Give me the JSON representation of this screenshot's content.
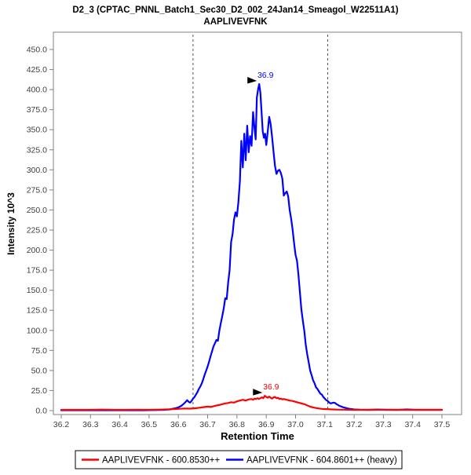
{
  "window": {
    "title_line1": "D2_3 (CPTAC_PNNL_Batch1_Sec30_D2_002_24Jan14_Smeagol_W22511A1)",
    "title_line2": "AAPLIVEVFNK"
  },
  "colors": {
    "frame": "#808080",
    "tick_label": "#404040",
    "boundary": "#555555",
    "light_series": "#ff0000",
    "heavy_series": "#0000ff",
    "annotation_arrow": "#000000"
  },
  "legend": {
    "entries": [
      {
        "label": "AAPLIVEVFNK - 600.8530++",
        "color": "#ff0000"
      },
      {
        "label": "AAPLIVEVFNK - 604.8601++ (heavy)",
        "color": "#0000ff"
      }
    ]
  },
  "chart_data": {
    "type": "line",
    "title": "D2_3 (CPTAC_PNNL_Batch1_Sec30_D2_002_24Jan14_Smeagol_W22511A1)",
    "subtitle": "AAPLIVEVFNK",
    "xlabel": "Retention Time",
    "ylabel": "Intensity 10^3",
    "xlim": [
      36.2,
      37.5
    ],
    "ylim": [
      0,
      450
    ],
    "grid": false,
    "legend_position": "bottom",
    "x_ticks": [
      36.2,
      36.3,
      36.4,
      36.5,
      36.6,
      36.7,
      36.8,
      36.9,
      37.0,
      37.1,
      37.2,
      37.3,
      37.4,
      37.5
    ],
    "y_ticks": [
      0,
      25,
      50,
      75,
      100,
      125,
      150,
      175,
      200,
      225,
      250,
      275,
      300,
      325,
      350,
      375,
      400,
      425,
      450
    ],
    "integration_boundaries": [
      36.65,
      37.11
    ],
    "series": [
      {
        "name": "AAPLIVEVFNK - 600.8530++",
        "color": "#ff0000",
        "peak_label": "36.9",
        "peak_apex": {
          "t": 36.895,
          "v": 18.5
        },
        "points": [
          [
            36.2,
            1
          ],
          [
            36.25,
            1
          ],
          [
            36.3,
            1
          ],
          [
            36.34,
            1.3
          ],
          [
            36.38,
            1
          ],
          [
            36.42,
            1
          ],
          [
            36.46,
            1.2
          ],
          [
            36.5,
            1
          ],
          [
            36.54,
            1.3
          ],
          [
            36.58,
            1.8
          ],
          [
            36.6,
            2.2
          ],
          [
            36.62,
            2.6
          ],
          [
            36.64,
            2.4
          ],
          [
            36.66,
            3
          ],
          [
            36.68,
            4
          ],
          [
            36.7,
            5
          ],
          [
            36.71,
            4.5
          ],
          [
            36.72,
            5.5
          ],
          [
            36.73,
            6.5
          ],
          [
            36.74,
            7
          ],
          [
            36.75,
            8
          ],
          [
            36.76,
            9
          ],
          [
            36.77,
            9.5
          ],
          [
            36.78,
            10.5
          ],
          [
            36.79,
            10
          ],
          [
            36.8,
            11.5
          ],
          [
            36.81,
            12.5
          ],
          [
            36.82,
            13.5
          ],
          [
            36.83,
            12.5
          ],
          [
            36.84,
            14
          ],
          [
            36.85,
            14.5
          ],
          [
            36.855,
            13.5
          ],
          [
            36.86,
            15
          ],
          [
            36.865,
            14.5
          ],
          [
            36.87,
            15.5
          ],
          [
            36.875,
            14.5
          ],
          [
            36.88,
            15.5
          ],
          [
            36.885,
            16.5
          ],
          [
            36.89,
            15.5
          ],
          [
            36.895,
            18.5
          ],
          [
            36.9,
            17
          ],
          [
            36.905,
            16
          ],
          [
            36.91,
            17.5
          ],
          [
            36.915,
            16
          ],
          [
            36.92,
            15
          ],
          [
            36.925,
            16.5
          ],
          [
            36.93,
            17
          ],
          [
            36.935,
            15.5
          ],
          [
            36.94,
            16
          ],
          [
            36.945,
            14.5
          ],
          [
            36.95,
            15
          ],
          [
            36.955,
            14
          ],
          [
            36.96,
            14.5
          ],
          [
            36.97,
            13.5
          ],
          [
            36.98,
            12.5
          ],
          [
            36.99,
            12
          ],
          [
            37.0,
            11
          ],
          [
            37.01,
            10
          ],
          [
            37.02,
            9
          ],
          [
            37.03,
            8
          ],
          [
            37.04,
            6.5
          ],
          [
            37.05,
            5
          ],
          [
            37.06,
            4
          ],
          [
            37.07,
            3.2
          ],
          [
            37.08,
            2.6
          ],
          [
            37.09,
            2.2
          ],
          [
            37.1,
            2
          ],
          [
            37.12,
            1.6
          ],
          [
            37.14,
            1.3
          ],
          [
            37.17,
            1.2
          ],
          [
            37.2,
            1
          ],
          [
            37.25,
            1
          ],
          [
            37.3,
            1.2
          ],
          [
            37.35,
            1
          ],
          [
            37.4,
            1
          ],
          [
            37.45,
            1
          ],
          [
            37.5,
            1
          ]
        ]
      },
      {
        "name": "AAPLIVEVFNK - 604.8601++ (heavy)",
        "color": "#0000ff",
        "peak_label": "36.9",
        "peak_apex": {
          "t": 36.876,
          "v": 407
        },
        "points": [
          [
            36.2,
            0.5
          ],
          [
            36.24,
            0.5
          ],
          [
            36.28,
            0.5
          ],
          [
            36.32,
            0.5
          ],
          [
            36.36,
            0.5
          ],
          [
            36.4,
            0.5
          ],
          [
            36.44,
            0.5
          ],
          [
            36.48,
            0.5
          ],
          [
            36.52,
            0.7
          ],
          [
            36.55,
            1
          ],
          [
            36.57,
            1.5
          ],
          [
            36.59,
            3
          ],
          [
            36.6,
            4
          ],
          [
            36.61,
            6
          ],
          [
            36.62,
            9
          ],
          [
            36.625,
            11
          ],
          [
            36.63,
            13
          ],
          [
            36.635,
            11
          ],
          [
            36.64,
            10
          ],
          [
            36.645,
            12
          ],
          [
            36.65,
            15
          ],
          [
            36.655,
            17
          ],
          [
            36.66,
            20
          ],
          [
            36.665,
            23
          ],
          [
            36.67,
            27
          ],
          [
            36.675,
            30
          ],
          [
            36.68,
            34
          ],
          [
            36.685,
            39
          ],
          [
            36.69,
            45
          ],
          [
            36.695,
            50
          ],
          [
            36.7,
            55
          ],
          [
            36.705,
            61
          ],
          [
            36.71,
            68
          ],
          [
            36.715,
            74
          ],
          [
            36.72,
            80
          ],
          [
            36.725,
            84
          ],
          [
            36.73,
            88
          ],
          [
            36.735,
            87
          ],
          [
            36.74,
            100
          ],
          [
            36.745,
            109
          ],
          [
            36.75,
            118
          ],
          [
            36.755,
            128
          ],
          [
            36.76,
            140
          ],
          [
            36.765,
            139
          ],
          [
            36.77,
            160
          ],
          [
            36.775,
            175
          ],
          [
            36.78,
            210
          ],
          [
            36.785,
            220
          ],
          [
            36.79,
            238
          ],
          [
            36.795,
            247
          ],
          [
            36.8,
            242
          ],
          [
            36.805,
            260
          ],
          [
            36.81,
            286
          ],
          [
            36.815,
            336
          ],
          [
            36.82,
            303
          ],
          [
            36.825,
            345
          ],
          [
            36.83,
            312
          ],
          [
            36.835,
            355
          ],
          [
            36.84,
            322
          ],
          [
            36.845,
            342
          ],
          [
            36.85,
            330
          ],
          [
            36.855,
            372
          ],
          [
            36.86,
            352
          ],
          [
            36.864,
            338
          ],
          [
            36.868,
            390
          ],
          [
            36.872,
            400
          ],
          [
            36.876,
            407
          ],
          [
            36.88,
            396
          ],
          [
            36.884,
            372
          ],
          [
            36.888,
            348
          ],
          [
            36.892,
            340
          ],
          [
            36.896,
            345
          ],
          [
            36.9,
            331
          ],
          [
            36.905,
            347
          ],
          [
            36.91,
            366
          ],
          [
            36.915,
            357
          ],
          [
            36.92,
            341
          ],
          [
            36.925,
            322
          ],
          [
            36.93,
            305
          ],
          [
            36.935,
            295
          ],
          [
            36.94,
            299
          ],
          [
            36.945,
            300
          ],
          [
            36.95,
            296
          ],
          [
            36.955,
            289
          ],
          [
            36.96,
            268
          ],
          [
            36.965,
            271
          ],
          [
            36.97,
            273
          ],
          [
            36.975,
            267
          ],
          [
            36.98,
            250
          ],
          [
            36.985,
            239
          ],
          [
            36.99,
            226
          ],
          [
            36.995,
            209
          ],
          [
            37.0,
            194
          ],
          [
            37.005,
            187
          ],
          [
            37.01,
            169
          ],
          [
            37.015,
            147
          ],
          [
            37.02,
            126
          ],
          [
            37.025,
            112
          ],
          [
            37.03,
            99
          ],
          [
            37.035,
            82
          ],
          [
            37.04,
            70
          ],
          [
            37.045,
            60
          ],
          [
            37.05,
            50
          ],
          [
            37.055,
            44
          ],
          [
            37.06,
            38
          ],
          [
            37.065,
            34
          ],
          [
            37.07,
            29
          ],
          [
            37.075,
            27
          ],
          [
            37.08,
            24
          ],
          [
            37.085,
            21
          ],
          [
            37.09,
            20
          ],
          [
            37.095,
            17
          ],
          [
            37.1,
            15
          ],
          [
            37.105,
            13
          ],
          [
            37.11,
            12
          ],
          [
            37.115,
            10
          ],
          [
            37.12,
            9
          ],
          [
            37.125,
            9.5
          ],
          [
            37.13,
            10
          ],
          [
            37.135,
            9.5
          ],
          [
            37.14,
            8
          ],
          [
            37.145,
            7
          ],
          [
            37.15,
            6
          ],
          [
            37.16,
            4.5
          ],
          [
            37.17,
            3.5
          ],
          [
            37.18,
            2.5
          ],
          [
            37.19,
            2
          ],
          [
            37.2,
            1.5
          ],
          [
            37.22,
            1.2
          ],
          [
            37.25,
            1
          ],
          [
            37.28,
            1.4
          ],
          [
            37.31,
            1
          ],
          [
            37.35,
            1
          ],
          [
            37.38,
            1.5
          ],
          [
            37.41,
            1
          ],
          [
            37.45,
            1
          ],
          [
            37.5,
            1
          ]
        ]
      }
    ]
  }
}
